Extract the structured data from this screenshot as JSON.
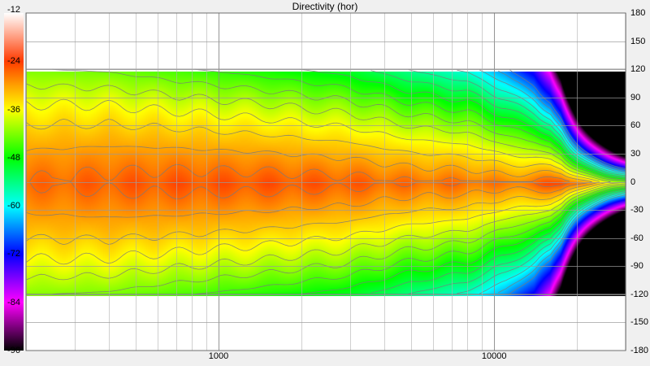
{
  "chart_data": {
    "type": "heatmap",
    "title": "Directivity (hor)",
    "x_scale": "log",
    "x_range_hz": [
      200,
      30000
    ],
    "x_tick_labels": [
      {
        "value": 1000,
        "label": "1000"
      },
      {
        "value": 10000,
        "label": "10000"
      }
    ],
    "y_range_deg": [
      -180,
      180
    ],
    "y_tick_labels": [
      "180",
      "150",
      "120",
      "90",
      "60",
      "30",
      "0",
      "-30",
      "-60",
      "-90",
      "-120",
      "-150",
      "-180"
    ],
    "data_y_extent_deg": [
      -120,
      120
    ],
    "colorbar": {
      "labels": [
        "-12",
        "-24",
        "-36",
        "-48",
        "-60",
        "-72",
        "-84",
        "-96"
      ],
      "range": [
        -96,
        -12
      ],
      "stops": [
        {
          "value": -12,
          "color": "#ffffff"
        },
        {
          "value": -24,
          "color": "#ff3a00"
        },
        {
          "value": -30,
          "color": "#ffa000"
        },
        {
          "value": -36,
          "color": "#ffff00"
        },
        {
          "value": -48,
          "color": "#00ff00"
        },
        {
          "value": -60,
          "color": "#00ffff"
        },
        {
          "value": -72,
          "color": "#0000ff"
        },
        {
          "value": -84,
          "color": "#ff00ff"
        },
        {
          "value": -96,
          "color": "#000000"
        }
      ]
    },
    "grid": true,
    "contours": true,
    "level_profile": [
      {
        "freq": 200,
        "on_axis_db": -27,
        "decay_db_per_deg": 0.075
      },
      {
        "freq": 400,
        "on_axis_db": -26,
        "decay_db_per_deg": 0.09
      },
      {
        "freq": 700,
        "on_axis_db": -25.5,
        "decay_db_per_deg": 0.11
      },
      {
        "freq": 1500,
        "on_axis_db": -25.5,
        "decay_db_per_deg": 0.13
      },
      {
        "freq": 3000,
        "on_axis_db": -26,
        "decay_db_per_deg": 0.15
      },
      {
        "freq": 5000,
        "on_axis_db": -27,
        "decay_db_per_deg": 0.18
      },
      {
        "freq": 8000,
        "on_axis_db": -27,
        "decay_db_per_deg": 0.21
      },
      {
        "freq": 11000,
        "on_axis_db": -28,
        "decay_db_per_deg": 0.26
      },
      {
        "freq": 14000,
        "on_axis_db": -27,
        "decay_db_per_deg": 0.34
      },
      {
        "freq": 16000,
        "on_axis_db": -25,
        "decay_db_per_deg": 0.45
      },
      {
        "freq": 17500,
        "on_axis_db": -24,
        "decay_db_per_deg": 0.6
      }
    ]
  }
}
